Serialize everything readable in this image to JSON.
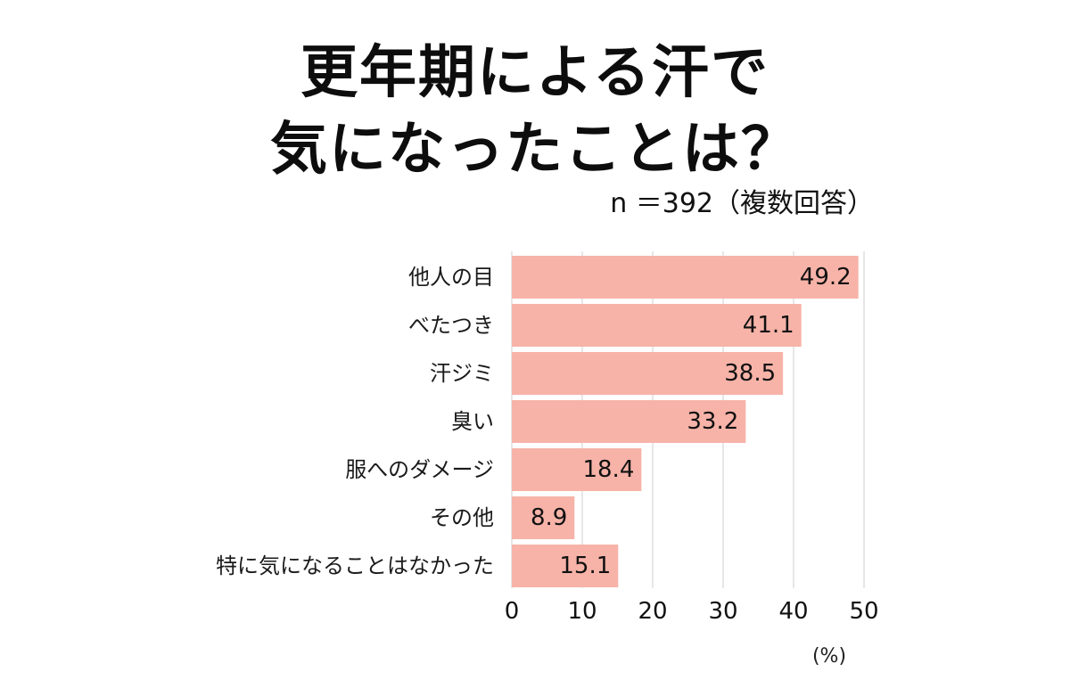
{
  "title_line1": "更年期による汗で",
  "title_line2": "気になったことは？",
  "subtitle": "n ＝392（複数回答）",
  "unit": "(%)",
  "colors": {
    "bar": "#f7b3a8",
    "grid": "#cfcfcf",
    "text": "#111111"
  },
  "chart_data": {
    "type": "bar",
    "orientation": "horizontal",
    "title": "更年期による汗で気になったことは？",
    "subtitle": "n ＝392（複数回答）",
    "xlabel": "(%)",
    "ylabel": "",
    "categories": [
      "他人の目",
      "べたつき",
      "汗ジミ",
      "臭い",
      "服へのダメージ",
      "その他",
      "特に気になることはなかった"
    ],
    "values": [
      49.2,
      41.1,
      38.5,
      33.2,
      18.4,
      8.9,
      15.1
    ],
    "value_labels": [
      "49.2",
      "41.1",
      "38.5",
      "33.2",
      "18.4",
      "8.9",
      "15.1"
    ],
    "xlim": [
      0,
      50
    ],
    "xticks": [
      0,
      10,
      20,
      30,
      40,
      50
    ],
    "grid": true
  }
}
